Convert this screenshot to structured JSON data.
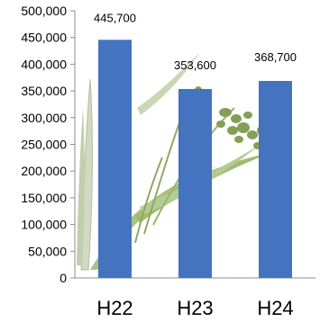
{
  "colors": {
    "bar": "#4473c0",
    "axis": "#8c8c8c",
    "plant_leaf": "#9bb86a",
    "plant_dark": "#6f8f3a",
    "plant_pale": "#c9d3b8"
  },
  "chart_data": {
    "type": "bar",
    "categories": [
      "H22",
      "H23",
      "H24"
    ],
    "values": [
      445700,
      353600,
      368700
    ],
    "value_labels": [
      "445,700",
      "353,600",
      "368,700"
    ],
    "y_tick_labels": [
      "0",
      "50,000",
      "100,000",
      "150,000",
      "200,000",
      "250,000",
      "300,000",
      "350,000",
      "400,000",
      "450,000",
      "500,000"
    ],
    "ylim": [
      0,
      500000
    ],
    "y_step": 50000,
    "grid": false,
    "legend": "none",
    "background": "rice-plant illustration",
    "title": "",
    "xlabel": "",
    "ylabel": ""
  }
}
